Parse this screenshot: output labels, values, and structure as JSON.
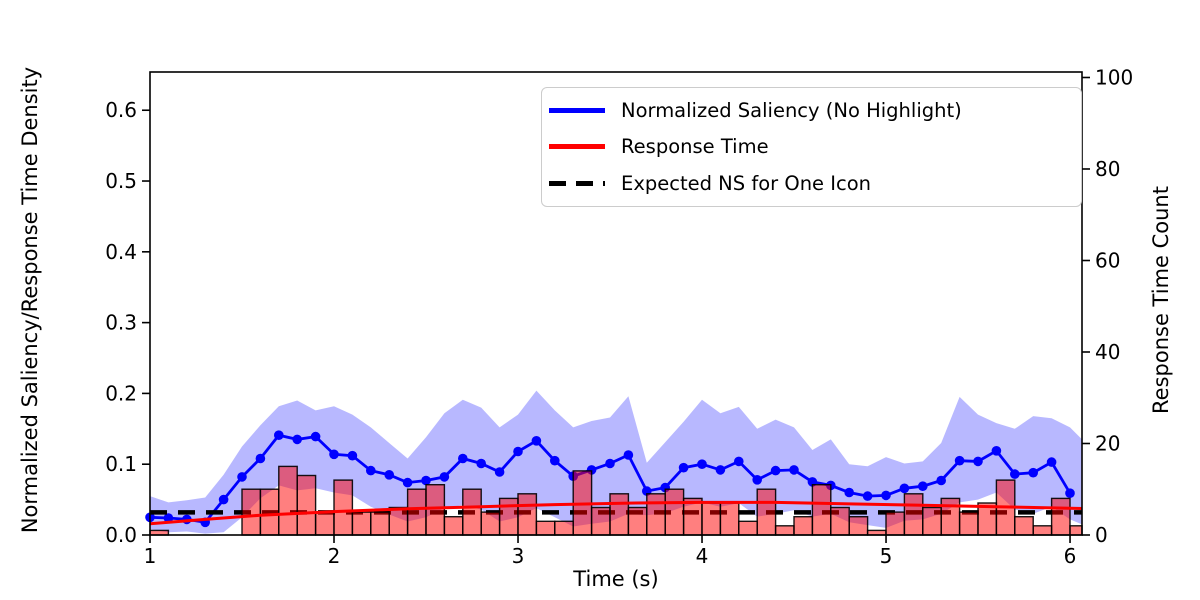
{
  "figure": {
    "xlabel": "Time (s)",
    "ylabel_left": "Normalized Saliency/Response Time Density",
    "ylabel_right": "Response Time Count",
    "background_color": "#ffffff",
    "spine_color": "#000000"
  },
  "legend": {
    "items": [
      {
        "label": "Normalized Saliency (No Highlight)",
        "color": "#0000ff",
        "style": "solid"
      },
      {
        "label": "Response Time",
        "color": "#ff0000",
        "style": "solid"
      },
      {
        "label": "Expected NS for One Icon",
        "color": "#000000",
        "style": "dashed"
      }
    ]
  },
  "chart_data": {
    "type": "line",
    "title": "",
    "xlabel": "Time (s)",
    "ylabel_left": "Normalized Saliency/Response Time Density",
    "ylabel_right": "Response Time Count",
    "axes": {
      "x": {
        "range": [
          1.0,
          6.065
        ],
        "ticks": [
          1,
          2,
          3,
          4,
          5,
          6
        ],
        "tick_labels": [
          "1",
          "2",
          "3",
          "4",
          "5",
          "6"
        ]
      },
      "y_left": {
        "range": [
          0.0,
          0.654
        ],
        "ticks": [
          0.0,
          0.1,
          0.2,
          0.3,
          0.4,
          0.5,
          0.6
        ],
        "tick_labels": [
          "0.0",
          "0.1",
          "0.2",
          "0.3",
          "0.4",
          "0.5",
          "0.6"
        ]
      },
      "y_right": {
        "range": [
          0,
          101.2
        ],
        "ticks": [
          0,
          20,
          40,
          60,
          80,
          100
        ],
        "tick_labels": [
          "0",
          "20",
          "40",
          "60",
          "80",
          "100"
        ]
      }
    },
    "grid": false,
    "legend_position": "upper center-right",
    "x": [
      1.0,
      1.1,
      1.2,
      1.3,
      1.4,
      1.5,
      1.6,
      1.7,
      1.8,
      1.9,
      2.0,
      2.1,
      2.2,
      2.3,
      2.4,
      2.5,
      2.6,
      2.7,
      2.8,
      2.9,
      3.0,
      3.1,
      3.2,
      3.3,
      3.4,
      3.5,
      3.6,
      3.7,
      3.8,
      3.9,
      4.0,
      4.1,
      4.2,
      4.3,
      4.4,
      4.5,
      4.6,
      4.7,
      4.8,
      4.9,
      5.0,
      5.1,
      5.2,
      5.3,
      5.4,
      5.5,
      5.6,
      5.7,
      5.8,
      5.9,
      6.0
    ],
    "series": [
      {
        "name": "Normalized Saliency (No Highlight)",
        "type": "line_markers",
        "color": "#0000ff",
        "axis": "left",
        "values": [
          0.025,
          0.024,
          0.022,
          0.018,
          0.05,
          0.082,
          0.108,
          0.141,
          0.135,
          0.139,
          0.114,
          0.112,
          0.091,
          0.085,
          0.074,
          0.077,
          0.082,
          0.108,
          0.101,
          0.089,
          0.118,
          0.133,
          0.105,
          0.083,
          0.092,
          0.101,
          0.113,
          0.062,
          0.067,
          0.095,
          0.1,
          0.092,
          0.104,
          0.078,
          0.091,
          0.092,
          0.075,
          0.07,
          0.06,
          0.055,
          0.056,
          0.066,
          0.069,
          0.077,
          0.105,
          0.104,
          0.119,
          0.086,
          0.088,
          0.103,
          0.059
        ]
      },
      {
        "name": "Saliency confidence band",
        "type": "area",
        "color": "rgba(0,0,255,0.28)",
        "axis": "left",
        "x": [
          1.0,
          1.1,
          1.2,
          1.3,
          1.4,
          1.5,
          1.6,
          1.7,
          1.8,
          1.9,
          2.0,
          2.1,
          2.2,
          2.3,
          2.4,
          2.5,
          2.6,
          2.7,
          2.8,
          2.9,
          3.0,
          3.1,
          3.2,
          3.3,
          3.4,
          3.5,
          3.6,
          3.7,
          3.8,
          3.9,
          4.0,
          4.1,
          4.2,
          4.3,
          4.4,
          4.5,
          4.6,
          4.7,
          4.8,
          4.9,
          5.0,
          5.1,
          5.2,
          5.3,
          5.4,
          5.5,
          5.6,
          5.7,
          5.8,
          5.9,
          6.0,
          6.065
        ],
        "upper": [
          0.055,
          0.046,
          0.049,
          0.053,
          0.085,
          0.125,
          0.155,
          0.182,
          0.19,
          0.176,
          0.182,
          0.17,
          0.152,
          0.13,
          0.108,
          0.138,
          0.172,
          0.191,
          0.18,
          0.152,
          0.17,
          0.204,
          0.176,
          0.152,
          0.161,
          0.166,
          0.196,
          0.102,
          0.131,
          0.16,
          0.191,
          0.172,
          0.181,
          0.15,
          0.163,
          0.152,
          0.12,
          0.135,
          0.1,
          0.097,
          0.11,
          0.101,
          0.104,
          0.13,
          0.195,
          0.17,
          0.158,
          0.15,
          0.168,
          0.165,
          0.152,
          0.135
        ],
        "lower": [
          0.008,
          0.004,
          0.005,
          0.002,
          0.004,
          0.025,
          0.052,
          0.07,
          0.063,
          0.066,
          0.06,
          0.056,
          0.04,
          0.029,
          0.019,
          0.025,
          0.038,
          0.042,
          0.036,
          0.019,
          0.025,
          0.038,
          0.025,
          0.012,
          0.016,
          0.019,
          0.03,
          0.028,
          0.031,
          0.04,
          0.046,
          0.04,
          0.045,
          0.026,
          0.03,
          0.035,
          0.026,
          0.03,
          0.018,
          0.014,
          0.01,
          0.02,
          0.022,
          0.03,
          0.046,
          0.05,
          0.06,
          0.036,
          0.03,
          0.04,
          0.022,
          0.015
        ]
      },
      {
        "name": "Response Time",
        "type": "line",
        "color": "#ff0000",
        "axis": "left",
        "x": [
          1.0,
          1.3,
          1.6,
          2.0,
          2.4,
          2.8,
          3.2,
          3.6,
          4.0,
          4.4,
          4.8,
          5.2,
          5.6,
          6.065
        ],
        "values": [
          0.016,
          0.022,
          0.028,
          0.033,
          0.037,
          0.04,
          0.043,
          0.045,
          0.046,
          0.046,
          0.044,
          0.042,
          0.04,
          0.0375
        ]
      },
      {
        "name": "Expected NS for One Icon",
        "type": "hline_dashed",
        "color": "#000000",
        "axis": "left",
        "value": 0.032
      },
      {
        "name": "Response Time histogram",
        "type": "bar",
        "fill": "rgba(255,0,0,0.5)",
        "edge": "rgba(0,0,0,0.9)",
        "axis": "right",
        "bin_start": 1.0,
        "bin_width": 0.1,
        "counts": [
          1,
          0,
          0,
          0,
          0,
          10,
          10,
          15,
          13,
          5,
          12,
          5,
          5,
          6,
          10,
          11,
          4,
          10,
          5,
          8,
          9,
          3,
          3,
          14,
          6,
          9,
          6,
          9,
          10,
          8,
          7,
          7,
          3,
          10,
          2,
          4,
          11,
          6,
          4,
          1,
          5,
          9,
          6,
          8,
          5,
          7,
          12,
          4,
          2,
          8,
          2
        ]
      }
    ]
  }
}
